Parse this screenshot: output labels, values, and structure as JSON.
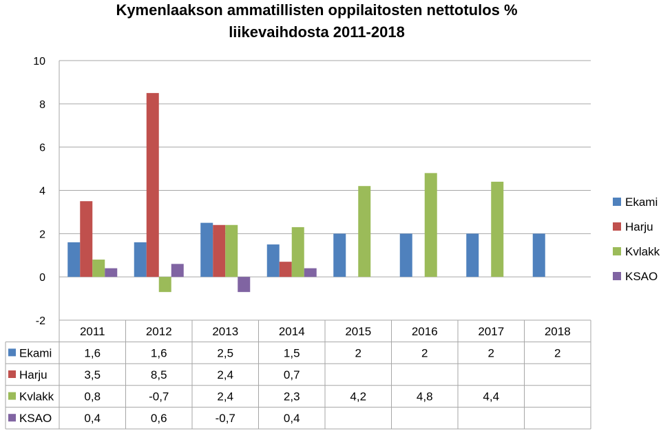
{
  "chart_data": {
    "type": "bar",
    "title_lines": [
      "Kymenlaakson ammatillisten oppilaitosten nettotulos %",
      "liikevaihdosta 2011-2018"
    ],
    "categories": [
      "2011",
      "2012",
      "2013",
      "2014",
      "2015",
      "2016",
      "2017",
      "2018"
    ],
    "ylim": [
      -2,
      10
    ],
    "yticks": [
      10,
      8,
      6,
      4,
      2,
      0,
      -2
    ],
    "grid": true,
    "legend_position": "right",
    "series": [
      {
        "name": "Ekami",
        "color": "#4f81bd",
        "values": [
          1.6,
          1.6,
          2.5,
          1.5,
          2,
          2,
          2,
          2
        ],
        "labels": [
          "1,6",
          "1,6",
          "2,5",
          "1,5",
          "2",
          "2",
          "2",
          "2"
        ]
      },
      {
        "name": "Harju",
        "color": "#c0504d",
        "values": [
          3.5,
          8.5,
          2.4,
          0.7,
          null,
          null,
          null,
          null
        ],
        "labels": [
          "3,5",
          "8,5",
          "2,4",
          "0,7",
          "",
          "",
          "",
          ""
        ]
      },
      {
        "name": "Kvlakk",
        "color": "#9bbb59",
        "values": [
          0.8,
          -0.7,
          2.4,
          2.3,
          4.2,
          4.8,
          4.4,
          null
        ],
        "labels": [
          "0,8",
          "-0,7",
          "2,4",
          "2,3",
          "4,2",
          "4,8",
          "4,4",
          ""
        ]
      },
      {
        "name": "KSAO",
        "color": "#8064a2",
        "values": [
          0.4,
          0.6,
          -0.7,
          0.4,
          null,
          null,
          null,
          null
        ],
        "labels": [
          "0,4",
          "0,6",
          "-0,7",
          "0,4",
          "",
          "",
          "",
          ""
        ]
      }
    ]
  }
}
